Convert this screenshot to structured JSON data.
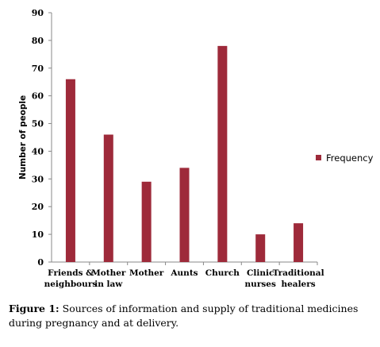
{
  "chart_data": {
    "type": "bar",
    "categories": [
      [
        "Friends &",
        "neighbours"
      ],
      [
        "Mother",
        "in law"
      ],
      [
        "Mother"
      ],
      [
        "Aunts"
      ],
      [
        "Church"
      ],
      [
        "Clinic",
        "nurses"
      ],
      [
        "Traditional",
        "healers"
      ]
    ],
    "series": [
      {
        "name": "Frequency",
        "values": [
          66,
          46,
          29,
          34,
          78,
          10,
          14
        ]
      }
    ],
    "title": "",
    "xlabel": "",
    "ylabel": "Number of people",
    "ylim": [
      0,
      90
    ],
    "yticks": [
      0,
      10,
      20,
      30,
      40,
      50,
      60,
      70,
      80,
      90
    ],
    "grid": false,
    "legend": "right",
    "colors": {
      "bar": "#9e2a3a",
      "axis": "#888888"
    }
  },
  "caption": {
    "label": "Figure 1:",
    "text": " Sources of information and supply of traditional medicines during pregnancy and at delivery."
  }
}
